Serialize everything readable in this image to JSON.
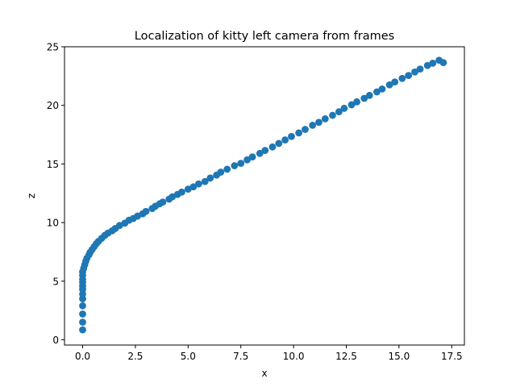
{
  "chart_data": {
    "type": "scatter",
    "title": "Localization of kitty left camera from frames",
    "xlabel": "x",
    "ylabel": "z",
    "xlim": [
      -0.86,
      18.1
    ],
    "ylim": [
      -0.45,
      25.0
    ],
    "xticks": [
      0.0,
      2.5,
      5.0,
      7.5,
      10.0,
      12.5,
      15.0,
      17.5
    ],
    "yticks": [
      0,
      5,
      10,
      15,
      20,
      25
    ],
    "xtick_labels": [
      "0.0",
      "2.5",
      "5.0",
      "7.5",
      "10.0",
      "12.5",
      "15.0",
      "17.5"
    ],
    "ytick_labels": [
      "0",
      "5",
      "10",
      "15",
      "20",
      "25"
    ],
    "grid": false,
    "legend": "none",
    "marker_color": "#1f77b4",
    "series": [
      {
        "x": [
          0.0,
          0.0,
          0.0,
          0.0,
          0.0,
          0.0,
          0.0,
          0.0,
          0.0,
          0.0,
          0.0,
          0.0,
          0.05,
          0.1,
          0.15,
          0.2,
          0.3,
          0.35,
          0.45,
          0.55,
          0.65,
          0.75,
          0.9,
          1.05,
          1.2,
          1.4,
          1.55,
          1.75,
          2.0,
          2.2,
          2.4,
          2.6,
          2.85,
          3.0,
          3.3,
          3.45,
          3.65,
          3.8,
          4.1,
          4.25,
          4.5,
          4.7,
          5.0,
          5.25,
          5.5,
          5.8,
          6.05,
          6.35,
          6.55,
          6.85,
          7.2,
          7.5,
          7.8,
          8.05,
          8.4,
          8.65,
          9.0,
          9.3,
          9.6,
          9.9,
          10.25,
          10.55,
          10.9,
          11.2,
          11.5,
          11.85,
          12.15,
          12.4,
          12.75,
          13.0,
          13.35,
          13.6,
          13.95,
          14.2,
          14.55,
          14.8,
          15.15,
          15.45,
          15.75,
          16.0,
          16.35,
          16.6,
          16.9,
          17.1
        ],
        "y": [
          0.85,
          1.5,
          2.2,
          2.9,
          3.5,
          3.9,
          4.3,
          4.6,
          4.9,
          5.15,
          5.5,
          5.8,
          6.1,
          6.4,
          6.7,
          6.95,
          7.25,
          7.45,
          7.7,
          7.95,
          8.2,
          8.4,
          8.65,
          8.9,
          9.1,
          9.3,
          9.5,
          9.75,
          9.95,
          10.2,
          10.35,
          10.55,
          10.75,
          10.95,
          11.2,
          11.4,
          11.6,
          11.75,
          12.0,
          12.2,
          12.4,
          12.6,
          12.85,
          13.05,
          13.3,
          13.5,
          13.8,
          14.05,
          14.3,
          14.55,
          14.85,
          15.05,
          15.35,
          15.6,
          15.9,
          16.15,
          16.45,
          16.75,
          17.05,
          17.35,
          17.65,
          17.95,
          18.3,
          18.55,
          18.85,
          19.15,
          19.45,
          19.75,
          20.05,
          20.3,
          20.6,
          20.85,
          21.15,
          21.4,
          21.75,
          22.0,
          22.3,
          22.55,
          22.85,
          23.1,
          23.4,
          23.6,
          23.85,
          23.65
        ]
      }
    ]
  }
}
